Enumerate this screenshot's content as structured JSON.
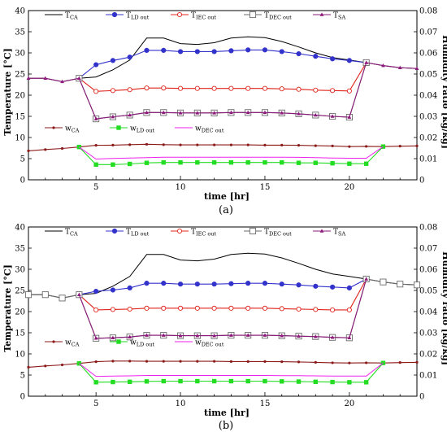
{
  "chart_data": [
    {
      "id": "a",
      "type": "line",
      "panel_label": "(a)",
      "xlabel": "time [hr]",
      "ylabel_left": "Temperature [°C]",
      "ylabel_right": "Humidity ratio [kg/kg]",
      "xlim": [
        1,
        24
      ],
      "ylim_left": [
        0,
        40
      ],
      "ylim_right": [
        0,
        0.08
      ],
      "xticks": [
        5,
        10,
        15,
        20
      ],
      "yticks_left": [
        0,
        5,
        10,
        15,
        20,
        25,
        30,
        35,
        40
      ],
      "yticks_right": [
        0,
        0.01,
        0.02,
        0.03,
        0.04,
        0.05,
        0.06,
        0.07,
        0.08
      ],
      "legend_position": "top",
      "series": [
        {
          "name": "T_CA",
          "label_main": "T",
          "label_sub": "CA",
          "axis": "left",
          "color": "#000000",
          "marker": "none",
          "x": [
            1,
            2,
            3,
            4,
            5,
            6,
            7,
            8,
            9,
            10,
            11,
            12,
            13,
            14,
            15,
            16,
            17,
            18,
            19,
            20,
            21,
            22,
            23,
            24
          ],
          "y": [
            24,
            24,
            23.2,
            24,
            24.3,
            26,
            28.3,
            33.5,
            33.5,
            32.2,
            32,
            32.4,
            33.5,
            33.8,
            33.6,
            32.7,
            31.4,
            30,
            28.9,
            28.3,
            27.7,
            27,
            26.5,
            26.3
          ]
        },
        {
          "name": "T_LD out",
          "label_main": "T",
          "label_sub": "LD out",
          "axis": "left",
          "color": "#3333cc",
          "marker": "circle",
          "x": [
            4,
            5,
            6,
            7,
            8,
            9,
            10,
            11,
            12,
            13,
            14,
            15,
            16,
            17,
            18,
            19,
            20,
            21
          ],
          "y": [
            24,
            27.2,
            28.2,
            29,
            30.6,
            30.6,
            30.3,
            30.3,
            30.3,
            30.5,
            30.7,
            30.7,
            30.3,
            29.8,
            29.2,
            28.6,
            28.2,
            27.7
          ]
        },
        {
          "name": "T_IEC out",
          "label_main": "T",
          "label_sub": "IEC out",
          "axis": "left",
          "color": "#e0241b",
          "marker": "circle-open",
          "x": [
            4,
            5,
            6,
            7,
            8,
            9,
            10,
            11,
            12,
            13,
            14,
            15,
            16,
            17,
            18,
            19,
            20,
            21
          ],
          "y": [
            24,
            20.9,
            21.1,
            21.3,
            21.7,
            21.7,
            21.6,
            21.6,
            21.6,
            21.6,
            21.6,
            21.6,
            21.5,
            21.4,
            21.2,
            21.1,
            21,
            27.7
          ]
        },
        {
          "name": "T_DEC out",
          "label_main": "T",
          "label_sub": "DEC out",
          "axis": "left",
          "color": "#6b6b6b",
          "marker": "square-open",
          "x": [
            4,
            5,
            6,
            7,
            8,
            9,
            10,
            11,
            12,
            13,
            14,
            15,
            16,
            17,
            18,
            19,
            20,
            21
          ],
          "y": [
            24,
            14.4,
            14.9,
            15.3,
            15.9,
            15.9,
            15.8,
            15.8,
            15.8,
            15.9,
            15.9,
            15.9,
            15.8,
            15.6,
            15.3,
            15,
            14.8,
            27.7
          ]
        },
        {
          "name": "T_SA",
          "label_main": "T",
          "label_sub": "SA",
          "axis": "left",
          "color": "#8b1a7a",
          "marker": "tri",
          "x": [
            1,
            2,
            3,
            4,
            5,
            6,
            7,
            8,
            9,
            10,
            11,
            12,
            13,
            14,
            15,
            16,
            17,
            18,
            19,
            20,
            21,
            22,
            23,
            24
          ],
          "y": [
            24,
            24,
            23.2,
            24,
            14.4,
            14.9,
            15.3,
            15.9,
            15.9,
            15.8,
            15.8,
            15.8,
            15.9,
            15.9,
            15.9,
            15.8,
            15.6,
            15.3,
            15,
            14.8,
            27.7,
            27,
            26.5,
            26.3
          ]
        },
        {
          "name": "w_CA",
          "label_main": "w",
          "label_sub": "CA",
          "axis": "right",
          "color": "#8b1a1a",
          "marker": "dot",
          "x": [
            1,
            2,
            3,
            4,
            5,
            6,
            7,
            8,
            9,
            10,
            11,
            12,
            13,
            14,
            15,
            16,
            17,
            18,
            19,
            20,
            21,
            22,
            23,
            24
          ],
          "y": [
            0.0137,
            0.0143,
            0.0148,
            0.0155,
            0.0163,
            0.0164,
            0.0166,
            0.0168,
            0.0166,
            0.0165,
            0.0165,
            0.0165,
            0.0165,
            0.0165,
            0.0164,
            0.0164,
            0.0163,
            0.0161,
            0.016,
            0.0157,
            0.0158,
            0.0157,
            0.0159,
            0.016
          ]
        },
        {
          "name": "w_LD out",
          "label_main": "w",
          "label_sub": "LD out",
          "axis": "right",
          "color": "#22dd22",
          "marker": "square",
          "x": [
            4,
            5,
            6,
            7,
            8,
            9,
            10,
            11,
            12,
            13,
            14,
            15,
            16,
            17,
            18,
            19,
            20,
            21,
            22
          ],
          "y": [
            0.0155,
            0.0072,
            0.0072,
            0.0075,
            0.008,
            0.0082,
            0.0082,
            0.0082,
            0.0082,
            0.0082,
            0.0082,
            0.0082,
            0.0082,
            0.008,
            0.008,
            0.0078,
            0.0076,
            0.0076,
            0.0157
          ]
        },
        {
          "name": "w_DEC out",
          "label_main": "w",
          "label_sub": "DEC out",
          "axis": "right",
          "color": "#ee22ee",
          "marker": "none",
          "x": [
            4,
            5,
            6,
            7,
            8,
            9,
            10,
            11,
            12,
            13,
            14,
            15,
            16,
            17,
            18,
            19,
            20,
            21,
            22
          ],
          "y": [
            0.0155,
            0.0098,
            0.0101,
            0.0103,
            0.0105,
            0.0107,
            0.0107,
            0.0107,
            0.0107,
            0.0107,
            0.0107,
            0.0107,
            0.0107,
            0.0106,
            0.0105,
            0.0103,
            0.0102,
            0.0102,
            0.0157
          ]
        }
      ]
    },
    {
      "id": "b",
      "type": "line",
      "panel_label": "(b)",
      "xlabel": "time [hr]",
      "ylabel_left": "Temperature [°C]",
      "ylabel_right": "Humidity ratio [kg/kg]",
      "xlim": [
        1,
        24
      ],
      "ylim_left": [
        0,
        40
      ],
      "ylim_right": [
        0,
        0.08
      ],
      "xticks": [
        5,
        10,
        15,
        20
      ],
      "yticks_left": [
        0,
        5,
        10,
        15,
        20,
        25,
        30,
        35,
        40
      ],
      "yticks_right": [
        0,
        0.01,
        0.02,
        0.03,
        0.04,
        0.05,
        0.06,
        0.07,
        0.08
      ],
      "legend_position": "top",
      "series": [
        {
          "name": "T_CA",
          "label_main": "T",
          "label_sub": "CA",
          "axis": "left",
          "color": "#000000",
          "marker": "none",
          "x": [
            1,
            2,
            3,
            4,
            5,
            6,
            7,
            8,
            9,
            10,
            11,
            12,
            13,
            14,
            15,
            16,
            17,
            18,
            19,
            20,
            21,
            22,
            23,
            24
          ],
          "y": [
            24,
            24,
            23.2,
            24,
            24.3,
            26,
            28.3,
            33.5,
            33.5,
            32.2,
            32,
            32.4,
            33.5,
            33.8,
            33.6,
            32.7,
            31.4,
            30,
            28.9,
            28.3,
            27.7,
            27,
            26.5,
            26.3
          ]
        },
        {
          "name": "T_LD out",
          "label_main": "T",
          "label_sub": "LD out",
          "axis": "left",
          "color": "#3333cc",
          "marker": "circle",
          "x": [
            4,
            5,
            6,
            7,
            8,
            9,
            10,
            11,
            12,
            13,
            14,
            15,
            16,
            17,
            18,
            19,
            20,
            21
          ],
          "y": [
            24,
            24.8,
            25.1,
            25.6,
            26.7,
            26.7,
            26.5,
            26.5,
            26.5,
            26.6,
            26.7,
            26.7,
            26.5,
            26.3,
            26,
            25.8,
            25.6,
            27.7
          ]
        },
        {
          "name": "T_IEC out",
          "label_main": "T",
          "label_sub": "IEC out",
          "axis": "left",
          "color": "#e0241b",
          "marker": "circle-open",
          "x": [
            4,
            5,
            6,
            7,
            8,
            9,
            10,
            11,
            12,
            13,
            14,
            15,
            16,
            17,
            18,
            19,
            20,
            21
          ],
          "y": [
            24,
            20.4,
            20.5,
            20.6,
            20.8,
            20.8,
            20.8,
            20.8,
            20.8,
            20.8,
            20.8,
            20.8,
            20.7,
            20.6,
            20.5,
            20.4,
            20.4,
            27.7
          ]
        },
        {
          "name": "T_DEC out",
          "label_main": "T",
          "label_sub": "DEC out",
          "axis": "left",
          "color": "#6b6b6b",
          "marker": "square-open",
          "x": [
            1,
            2,
            3,
            4,
            5,
            6,
            7,
            8,
            9,
            10,
            11,
            12,
            13,
            14,
            15,
            16,
            17,
            18,
            19,
            20,
            21,
            22,
            23,
            24
          ],
          "y": [
            24,
            24,
            23.2,
            24,
            13.7,
            13.8,
            14,
            14.4,
            14.4,
            14.3,
            14.3,
            14.3,
            14.4,
            14.4,
            14.4,
            14.3,
            14.2,
            14.1,
            13.9,
            13.8,
            27.7,
            27,
            26.5,
            26.3
          ]
        },
        {
          "name": "T_SA",
          "label_main": "T",
          "label_sub": "SA",
          "axis": "left",
          "color": "#8b1a7a",
          "marker": "tri",
          "x": [
            4,
            5,
            6,
            7,
            8,
            9,
            10,
            11,
            12,
            13,
            14,
            15,
            16,
            17,
            18,
            19,
            20,
            21
          ],
          "y": [
            24,
            13.7,
            13.8,
            14,
            14.4,
            14.4,
            14.3,
            14.3,
            14.3,
            14.4,
            14.4,
            14.4,
            14.3,
            14.2,
            14.1,
            13.9,
            13.8,
            27.7
          ]
        },
        {
          "name": "w_CA",
          "label_main": "w",
          "label_sub": "CA",
          "axis": "right",
          "color": "#8b1a1a",
          "marker": "dot",
          "x": [
            1,
            2,
            3,
            4,
            5,
            6,
            7,
            8,
            9,
            10,
            11,
            12,
            13,
            14,
            15,
            16,
            17,
            18,
            19,
            20,
            21,
            22,
            23,
            24
          ],
          "y": [
            0.0137,
            0.0143,
            0.0148,
            0.0155,
            0.0163,
            0.0166,
            0.0166,
            0.0165,
            0.0165,
            0.0165,
            0.0165,
            0.0165,
            0.0164,
            0.0164,
            0.0164,
            0.0163,
            0.0162,
            0.016,
            0.0158,
            0.0157,
            0.0158,
            0.0157,
            0.0159,
            0.016
          ]
        },
        {
          "name": "w_LD out",
          "label_main": "w",
          "label_sub": "LD out",
          "axis": "right",
          "color": "#22dd22",
          "marker": "square",
          "x": [
            4,
            5,
            6,
            7,
            8,
            9,
            10,
            11,
            12,
            13,
            14,
            15,
            16,
            17,
            18,
            19,
            20,
            21,
            22
          ],
          "y": [
            0.0155,
            0.0066,
            0.0067,
            0.0068,
            0.007,
            0.0071,
            0.0071,
            0.0071,
            0.0071,
            0.0071,
            0.0071,
            0.0071,
            0.007,
            0.0069,
            0.0068,
            0.0067,
            0.0066,
            0.0066,
            0.0157
          ]
        },
        {
          "name": "w_DEC out",
          "label_main": "w",
          "label_sub": "DEC out",
          "axis": "right",
          "color": "#ee22ee",
          "marker": "none",
          "x": [
            4,
            5,
            6,
            7,
            8,
            9,
            10,
            11,
            12,
            13,
            14,
            15,
            16,
            17,
            18,
            19,
            20,
            21,
            22
          ],
          "y": [
            0.0155,
            0.0094,
            0.0095,
            0.0096,
            0.0098,
            0.0098,
            0.0098,
            0.0098,
            0.0098,
            0.0098,
            0.0098,
            0.0098,
            0.0097,
            0.0097,
            0.0096,
            0.0095,
            0.0095,
            0.0095,
            0.0157
          ]
        }
      ]
    }
  ]
}
